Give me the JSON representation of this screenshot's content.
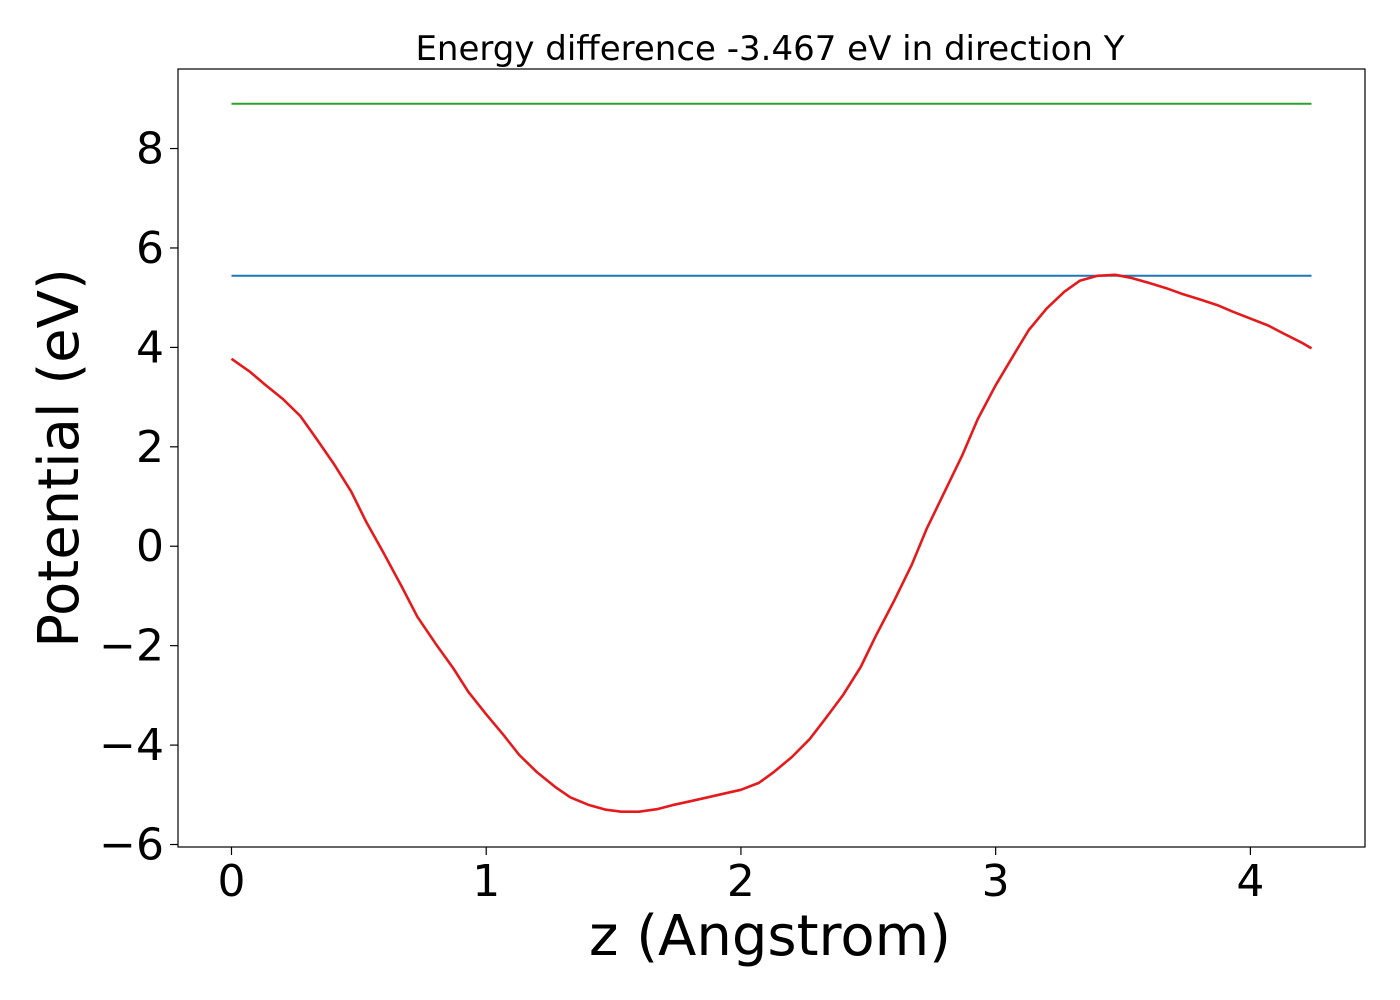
{
  "chart_data": {
    "type": "line",
    "title": "Energy difference -3.467 eV in direction Y",
    "xlabel": "z (Angstrom)",
    "ylabel": "Potential (eV)",
    "xlim": [
      -0.21,
      4.45
    ],
    "ylim": [
      -6.05,
      9.6
    ],
    "xticks": [
      0,
      1,
      2,
      3,
      4
    ],
    "yticks": [
      -6,
      -4,
      -2,
      0,
      2,
      4,
      6,
      8
    ],
    "xtick_labels": [
      "0",
      "1",
      "2",
      "3",
      "4"
    ],
    "ytick_labels": [
      "−6",
      "−4",
      "−2",
      "0",
      "2",
      "4",
      "6",
      "8"
    ],
    "grid": false,
    "series": [
      {
        "color": "#2ca02c",
        "x": [
          0,
          4.24
        ],
        "y": [
          8.9,
          8.9
        ]
      },
      {
        "color": "#1f77b4",
        "x": [
          0,
          4.24
        ],
        "y": [
          5.44,
          5.44
        ]
      },
      {
        "color": "#e41a1c",
        "x": [
          0,
          0.07,
          0.13,
          0.2,
          0.27,
          0.33,
          0.4,
          0.47,
          0.53,
          0.6,
          0.67,
          0.73,
          0.8,
          0.87,
          0.93,
          1.0,
          1.07,
          1.13,
          1.2,
          1.27,
          1.33,
          1.4,
          1.47,
          1.53,
          1.6,
          1.67,
          1.73,
          1.8,
          1.87,
          1.93,
          2.0,
          2.07,
          2.13,
          2.2,
          2.27,
          2.33,
          2.4,
          2.47,
          2.53,
          2.6,
          2.67,
          2.73,
          2.8,
          2.87,
          2.93,
          3.0,
          3.07,
          3.13,
          3.2,
          3.27,
          3.33,
          3.4,
          3.47,
          3.53,
          3.6,
          3.67,
          3.73,
          3.8,
          3.87,
          3.93,
          4.0,
          4.07,
          4.13,
          4.2,
          4.24
        ],
        "y": [
          3.77,
          3.52,
          3.26,
          2.97,
          2.62,
          2.19,
          1.67,
          1.1,
          0.48,
          -0.16,
          -0.83,
          -1.42,
          -1.95,
          -2.45,
          -2.93,
          -3.38,
          -3.81,
          -4.2,
          -4.55,
          -4.84,
          -5.05,
          -5.2,
          -5.3,
          -5.34,
          -5.34,
          -5.29,
          -5.21,
          -5.13,
          -5.05,
          -4.98,
          -4.9,
          -4.76,
          -4.54,
          -4.24,
          -3.88,
          -3.48,
          -3.0,
          -2.43,
          -1.8,
          -1.11,
          -0.38,
          0.36,
          1.1,
          1.84,
          2.56,
          3.24,
          3.84,
          4.35,
          4.78,
          5.12,
          5.34,
          5.44,
          5.46,
          5.4,
          5.3,
          5.19,
          5.08,
          4.97,
          4.85,
          4.72,
          4.58,
          4.44,
          4.28,
          4.1,
          3.98
        ]
      }
    ]
  }
}
